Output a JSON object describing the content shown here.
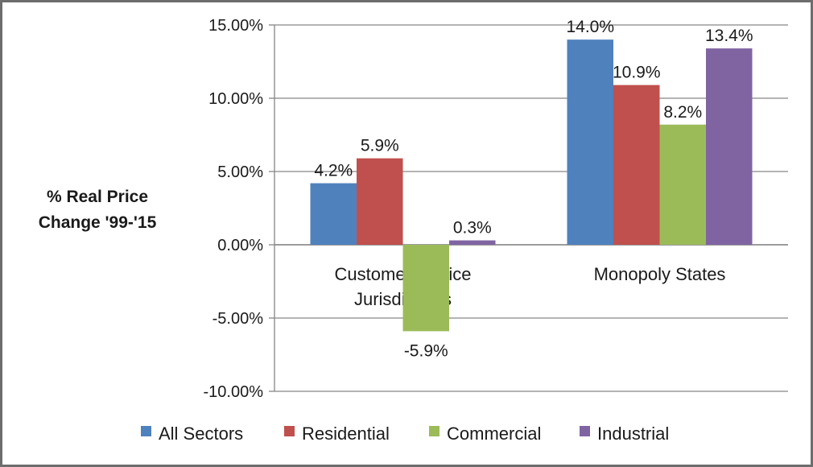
{
  "chart_data": {
    "type": "bar",
    "ylabel_lines": [
      "% Real Price",
      "Change '99-'15"
    ],
    "categories": [
      [
        "Customer Choice",
        "Jurisdictions"
      ],
      [
        "Monopoly States"
      ]
    ],
    "ylim": [
      -10,
      15
    ],
    "yticks": [
      15,
      10,
      5,
      0,
      -5,
      -10
    ],
    "ytick_labels": [
      "15.00%",
      "10.00%",
      "5.00%",
      "0.00%",
      "-5.00%",
      "-10.00%"
    ],
    "grid": true,
    "legend_position": "bottom",
    "series": [
      {
        "name": "All Sectors",
        "color": "#4f81bd",
        "values": [
          4.2,
          14.0
        ],
        "labels": [
          "4.2%",
          "14.0%"
        ]
      },
      {
        "name": "Residential",
        "color": "#c0504d",
        "values": [
          5.9,
          10.9
        ],
        "labels": [
          "5.9%",
          "10.9%"
        ]
      },
      {
        "name": "Commercial",
        "color": "#9bbb59",
        "values": [
          -5.9,
          8.2
        ],
        "labels": [
          "-5.9%",
          "8.2%"
        ]
      },
      {
        "name": "Industrial",
        "color": "#8064a2",
        "values": [
          0.3,
          13.4
        ],
        "labels": [
          "0.3%",
          "13.4%"
        ]
      }
    ]
  }
}
